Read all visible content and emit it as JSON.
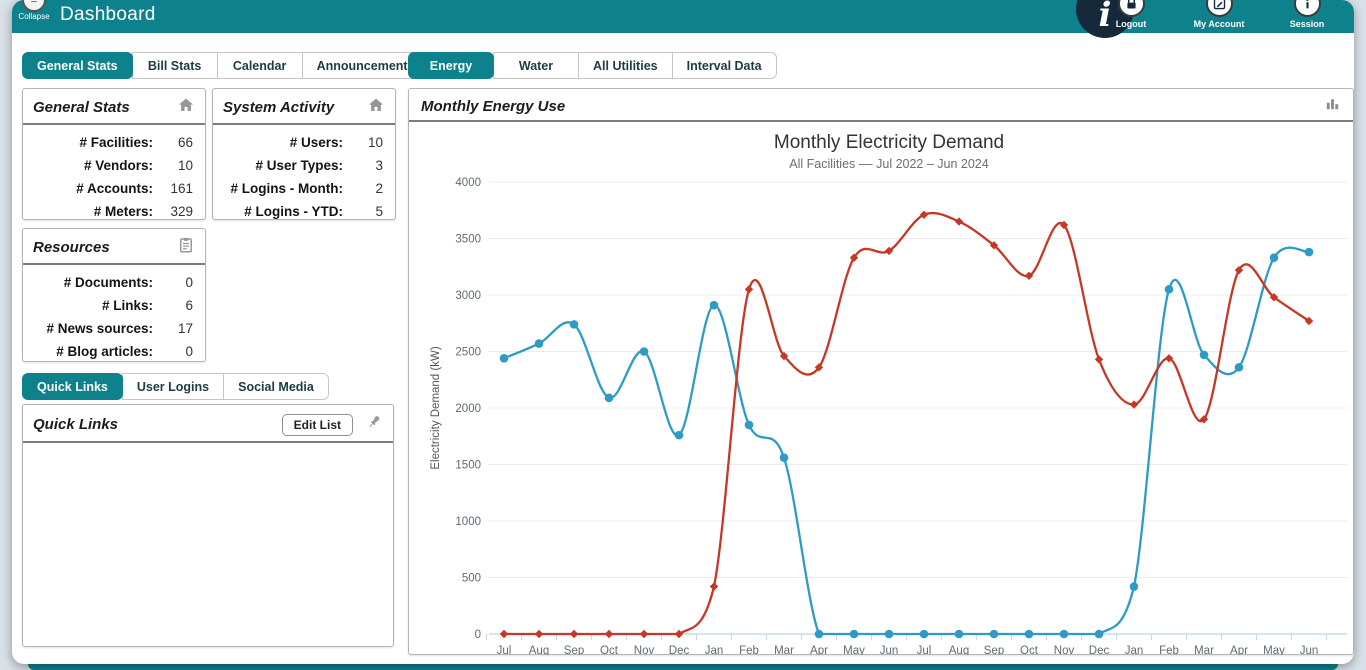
{
  "colors": {
    "teal": "#0E828C",
    "navy": "#16293B",
    "blue_series": "#2E9BC5",
    "red_series": "#C53826"
  },
  "header": {
    "title": "Dashboard",
    "collapse_label": "Collapse",
    "actions": [
      {
        "label": "Logout",
        "icon": "lock-icon"
      },
      {
        "label": "My Account",
        "icon": "account-icon"
      },
      {
        "label": "Session",
        "icon": "info-icon"
      }
    ]
  },
  "left_panel": {
    "tabs": [
      {
        "label": "General Stats",
        "active": true
      },
      {
        "label": "Bill Stats",
        "active": false
      },
      {
        "label": "Calendar",
        "active": false
      },
      {
        "label": "Announcements",
        "active": false
      }
    ],
    "general_stats": {
      "title": "General Stats",
      "icon": "home-icon",
      "rows": [
        {
          "label": "# Facilities:",
          "value": "66"
        },
        {
          "label": "# Vendors:",
          "value": "10"
        },
        {
          "label": "# Accounts:",
          "value": "161"
        },
        {
          "label": "# Meters:",
          "value": "329"
        }
      ]
    },
    "system_activity": {
      "title": "System Activity",
      "icon": "home-icon",
      "rows": [
        {
          "label": "# Users:",
          "value": "10"
        },
        {
          "label": "# User Types:",
          "value": "3"
        },
        {
          "label": "# Logins - Month:",
          "value": "2"
        },
        {
          "label": "# Logins - YTD:",
          "value": "5"
        }
      ]
    },
    "resources": {
      "title": "Resources",
      "icon": "clipboard-icon",
      "rows": [
        {
          "label": "# Documents:",
          "value": "0"
        },
        {
          "label": "# Links:",
          "value": "6"
        },
        {
          "label": "# News sources:",
          "value": "17"
        },
        {
          "label": "# Blog articles:",
          "value": "0"
        }
      ]
    },
    "quick_tabs": [
      {
        "label": "Quick Links",
        "active": true
      },
      {
        "label": "User Logins",
        "active": false
      },
      {
        "label": "Social Media",
        "active": false
      }
    ],
    "quick_links": {
      "title": "Quick Links",
      "edit_button": "Edit List",
      "icon": "pin-icon"
    }
  },
  "right_panel": {
    "tabs": [
      {
        "label": "Energy",
        "active": true
      },
      {
        "label": "Water",
        "active": false
      },
      {
        "label": "All Utilities",
        "active": false
      },
      {
        "label": "Interval Data",
        "active": false
      }
    ],
    "card_title": "Monthly Energy Use",
    "card_icon": "bar-chart-icon"
  },
  "chart_data": {
    "type": "line",
    "title": "Monthly Electricity Demand",
    "subtitle": "All Facilities –– Jul 2022 – Jun 2024",
    "ylabel": "Electricity Demand (kW)",
    "ylim": [
      0,
      4000
    ],
    "ytick_step": 500,
    "grid": true,
    "legend_position": "none",
    "categories": [
      "Jul",
      "Aug",
      "Sep",
      "Oct",
      "Nov",
      "Dec",
      "Jan",
      "Feb",
      "Mar",
      "Apr",
      "May",
      "Jun",
      "Jul",
      "Aug",
      "Sep",
      "Oct",
      "Nov",
      "Dec",
      "Jan",
      "Feb",
      "Mar",
      "Apr",
      "May",
      "Jun"
    ],
    "series": [
      {
        "name": "blue-line",
        "color": "#2E9BC5",
        "marker": "circle",
        "values": [
          2440,
          2570,
          2740,
          2090,
          2500,
          1760,
          2910,
          1850,
          1560,
          0,
          0,
          0,
          0,
          0,
          0,
          0,
          0,
          0,
          420,
          3050,
          2470,
          2360,
          3330,
          3380
        ]
      },
      {
        "name": "red-line",
        "color": "#C53826",
        "marker": "diamond",
        "values": [
          0,
          0,
          0,
          0,
          0,
          0,
          420,
          3050,
          2460,
          2360,
          3330,
          3390,
          3710,
          3650,
          3440,
          3170,
          3620,
          2430,
          2030,
          2440,
          1900,
          3220,
          2980,
          2770
        ]
      }
    ]
  }
}
